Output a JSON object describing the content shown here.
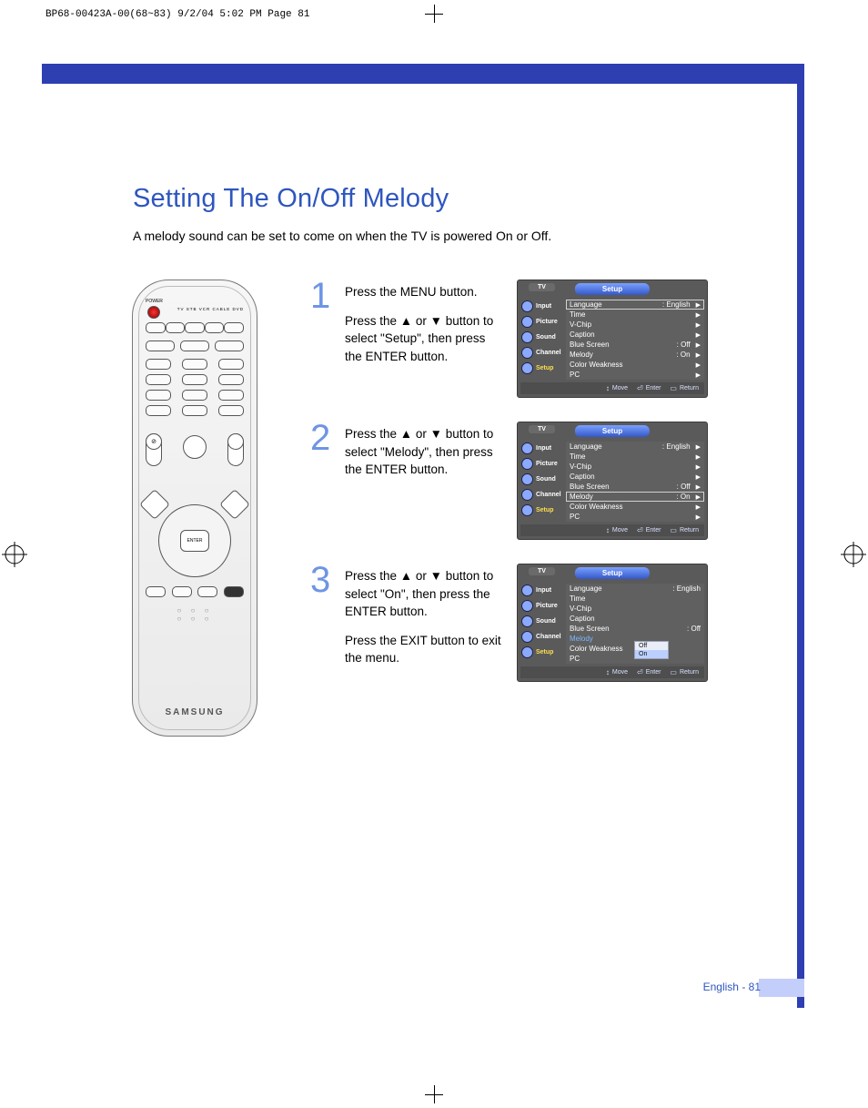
{
  "crop_header": "BP68-00423A-00(68~83)  9/2/04  5:02 PM  Page 81",
  "title": "Setting The On/Off Melody",
  "intro": "A melody sound can be set to come on when the TV is powered On or Off.",
  "remote": {
    "brand": "SAMSUNG",
    "top_labels": "TV  STB  VCR  CABLE  DVD",
    "power_label": "POWER",
    "enter_label": "ENTER"
  },
  "steps": [
    {
      "num": "1",
      "lines": [
        "Press the MENU button.",
        "Press the ▲ or ▼ button to select \"Setup\", then press the ENTER button."
      ]
    },
    {
      "num": "2",
      "lines": [
        "Press the ▲ or ▼ button to select \"Melody\", then press the ENTER button."
      ]
    },
    {
      "num": "3",
      "lines": [
        "Press the ▲ or ▼ button to select \"On\", then press the ENTER button.",
        "Press the EXIT button to exit the menu."
      ]
    }
  ],
  "osd": {
    "tv_label": "TV",
    "tab_title": "Setup",
    "side_items": [
      "Input",
      "Picture",
      "Sound",
      "Channel",
      "Setup"
    ],
    "side_highlight_index": 4,
    "menu_rows": [
      {
        "label": "Language",
        "value": ": English",
        "arrow": true
      },
      {
        "label": "Time",
        "value": "",
        "arrow": true
      },
      {
        "label": "V-Chip",
        "value": "",
        "arrow": true
      },
      {
        "label": "Caption",
        "value": "",
        "arrow": true
      },
      {
        "label": "Blue Screen",
        "value": ": Off",
        "arrow": true
      },
      {
        "label": "Melody",
        "value": ": On",
        "arrow": true
      },
      {
        "label": "Color Weakness",
        "value": "",
        "arrow": true
      },
      {
        "label": "PC",
        "value": "",
        "arrow": true
      }
    ],
    "footer": {
      "move": "Move",
      "enter": "Enter",
      "return": "Return"
    },
    "panel1_boxed_row": 0,
    "panel2_boxed_row": 5,
    "panel3_sel_row": 5,
    "panel3_popup": {
      "options": [
        "Off",
        "On"
      ],
      "highlight": 1
    }
  },
  "page_number": "English - 81",
  "colors": {
    "frame_blue": "#2e3fb2",
    "title_blue": "#2e56c0",
    "step_num_blue": "#6e95e4",
    "osd_bg": "#5a5a5a",
    "side_tab": "#c4cefb",
    "highlight_yellow": "#ffdf4f",
    "sel_blue": "#7cb7ff"
  }
}
